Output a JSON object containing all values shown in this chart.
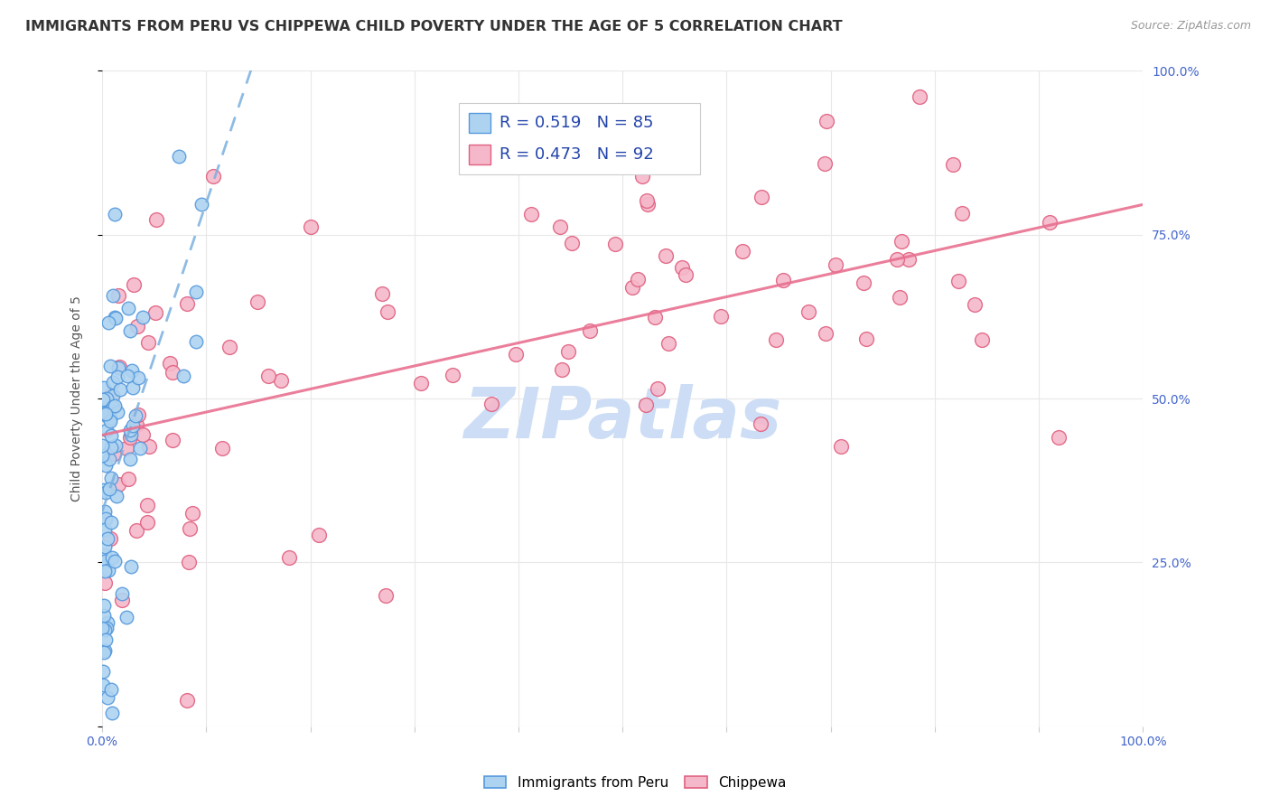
{
  "title": "IMMIGRANTS FROM PERU VS CHIPPEWA CHILD POVERTY UNDER THE AGE OF 5 CORRELATION CHART",
  "source": "Source: ZipAtlas.com",
  "ylabel": "Child Poverty Under the Age of 5",
  "xlim": [
    0,
    1
  ],
  "ylim": [
    0,
    1
  ],
  "legend_r1": "0.519",
  "legend_n1": "85",
  "legend_r2": "0.473",
  "legend_n2": "92",
  "peru_fill": "#aed3f0",
  "peru_edge": "#5599dd",
  "chippewa_fill": "#f5b8ca",
  "chippewa_edge": "#e06080",
  "peru_line_color": "#7ab0e0",
  "chippewa_line_color": "#e87090",
  "text_blue": "#4466cc",
  "watermark": "ZIPatlas",
  "watermark_color": "#ccddf5",
  "background_color": "#ffffff",
  "grid_color": "#e8e8e8",
  "title_fontsize": 11.5,
  "axis_label_fontsize": 10,
  "tick_fontsize": 10,
  "legend_text_color": "#2244aa"
}
